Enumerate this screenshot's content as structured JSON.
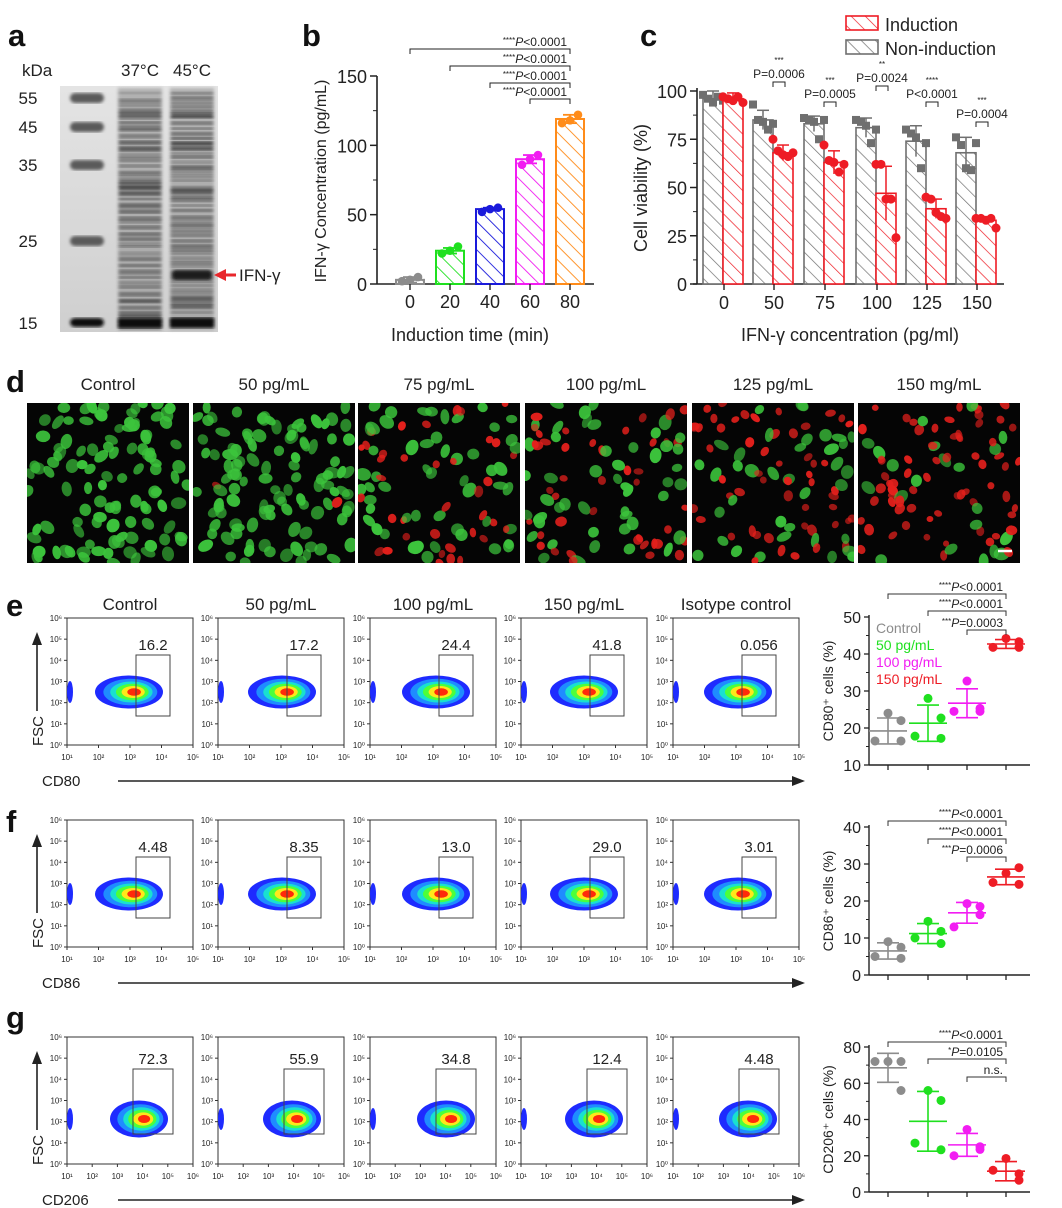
{
  "panel_labels": {
    "a": "a",
    "b": "b",
    "c": "c",
    "d": "d",
    "e": "e",
    "f": "f",
    "g": "g"
  },
  "panel_a": {
    "unit": "kDa",
    "markers": [
      "55",
      "45",
      "35",
      "25",
      "15"
    ],
    "lanes": [
      "37°C",
      "45°C"
    ],
    "arrow_label": "IFN-γ",
    "arrow_color": "#e8262b"
  },
  "chart_data": [
    {
      "id": "b",
      "type": "bar",
      "xlabel": "Induction time (min)",
      "ylabel": "IFN-γ Concentration (pg/mL)",
      "categories": [
        "0",
        "20",
        "40",
        "60",
        "80"
      ],
      "values": [
        3,
        24,
        54,
        90,
        119
      ],
      "errors": [
        2,
        2,
        1,
        3,
        3
      ],
      "points": [
        [
          2,
          3,
          5
        ],
        [
          22,
          24,
          27
        ],
        [
          52,
          54,
          55
        ],
        [
          86,
          90,
          93
        ],
        [
          116,
          118,
          122
        ]
      ],
      "colors": [
        "#8c8c8c",
        "#1fe01f",
        "#1a1adb",
        "#f21cf2",
        "#ff8c1a"
      ],
      "ylim": [
        0,
        150
      ],
      "yticks": [
        "0",
        "50",
        "100",
        "150"
      ],
      "grid": false,
      "comparisons": [
        {
          "from": "0",
          "to": "80",
          "stars": "****",
          "p": "P",
          "value": "<0.0001"
        },
        {
          "from": "20",
          "to": "80",
          "stars": "****",
          "p": "P",
          "value": "<0.0001"
        },
        {
          "from": "40",
          "to": "80",
          "stars": "****",
          "p": "P",
          "value": "<0.0001"
        },
        {
          "from": "60",
          "to": "80",
          "stars": "****",
          "p": "P",
          "value": "<0.0001"
        }
      ]
    },
    {
      "id": "c",
      "type": "bar",
      "xlabel": "IFN-γ concentration (pg/ml)",
      "ylabel": "Cell viability (%)",
      "categories": [
        "0",
        "50",
        "75",
        "100",
        "125",
        "150"
      ],
      "ylim": [
        0,
        100
      ],
      "yticks": [
        "0",
        "25",
        "50",
        "75",
        "100"
      ],
      "legend_position": "top-right",
      "series": [
        {
          "name": "Non-induction",
          "color": "#6f6f6f",
          "values": [
            96,
            85,
            83,
            81,
            74,
            68
          ],
          "errors": [
            4,
            5,
            4,
            5,
            8,
            8
          ],
          "points": [
            [
              98,
              96,
              94,
              97,
              95
            ],
            [
              93,
              85,
              84,
              80,
              83
            ],
            [
              86,
              85,
              84,
              75,
              85
            ],
            [
              85,
              84,
              82,
              73,
              80
            ],
            [
              80,
              78,
              76,
              60,
              73
            ],
            [
              76,
              72,
              60,
              59,
              73
            ]
          ]
        },
        {
          "name": "Induction",
          "color": "#ee1c25",
          "values": [
            96,
            68,
            63,
            47,
            39,
            33
          ],
          "errors": [
            3,
            4,
            6,
            14,
            5,
            1
          ],
          "points": [
            [
              97,
              96,
              95,
              97,
              94
            ],
            [
              75,
              69,
              67,
              66,
              68
            ],
            [
              72,
              64,
              63,
              58,
              62
            ],
            [
              62,
              62,
              44,
              44,
              24
            ],
            [
              45,
              44,
              37,
              35,
              34
            ],
            [
              34,
              34,
              33,
              34,
              29
            ]
          ]
        }
      ],
      "comparisons": [
        {
          "category": "50",
          "stars": "***",
          "label": "P=0.0006"
        },
        {
          "category": "75",
          "stars": "***",
          "label": "P=0.0005"
        },
        {
          "category": "100",
          "stars": "**",
          "label": "P=0.0024"
        },
        {
          "category": "125",
          "stars": "****",
          "label": "P<0.0001"
        },
        {
          "category": "150",
          "stars": "***",
          "label": "P=0.0004"
        }
      ]
    },
    {
      "id": "e",
      "type": "scatter",
      "ylabel": "CD80⁺ cells (%)",
      "ylim": [
        10,
        50
      ],
      "yticks": [
        "10",
        "20",
        "30",
        "40",
        "50"
      ],
      "legend_position": "top-left",
      "groups": [
        {
          "name": "Control",
          "color": "#8c8c8c",
          "mean": 19.2,
          "sd": 3.5,
          "points": [
            24,
            22,
            16.5,
            16.5
          ]
        },
        {
          "name": "50 pg/mL",
          "color": "#1fe01f",
          "mean": 21.3,
          "sd": 4.9,
          "points": [
            28,
            22.7,
            17.8,
            17.2
          ]
        },
        {
          "name": "100 pg/mL",
          "color": "#f21cf2",
          "mean": 26.7,
          "sd": 3.9,
          "points": [
            32.7,
            24.5,
            24.5,
            25.3
          ]
        },
        {
          "name": "150 pg/mL",
          "color": "#ee1c25",
          "mean": 42.7,
          "sd": 1.2,
          "points": [
            44.2,
            43.3,
            41.8,
            41.8
          ]
        }
      ],
      "comparisons": [
        {
          "from": "Control",
          "to": "150 pg/mL",
          "stars": "****",
          "p": "P",
          "value": "<0.0001"
        },
        {
          "from": "50 pg/mL",
          "to": "150 pg/mL",
          "stars": "****",
          "p": "P",
          "value": "<0.0001"
        },
        {
          "from": "100 pg/mL",
          "to": "150 pg/mL",
          "stars": "***",
          "p": "P",
          "value": "=0.0003"
        }
      ]
    },
    {
      "id": "f",
      "type": "scatter",
      "ylabel": "CD86⁺ cells (%)",
      "ylim": [
        0,
        40
      ],
      "yticks": [
        "0",
        "10",
        "20",
        "30",
        "40"
      ],
      "groups": [
        {
          "name": "Control",
          "color": "#8c8c8c",
          "mean": 6.5,
          "sd": 2.2,
          "points": [
            9,
            7.5,
            5,
            4.5
          ]
        },
        {
          "name": "50 pg/mL",
          "color": "#1fe01f",
          "mean": 11.2,
          "sd": 2.7,
          "points": [
            14.5,
            11.8,
            10,
            8.5
          ]
        },
        {
          "name": "100 pg/mL",
          "color": "#f21cf2",
          "mean": 16.8,
          "sd": 2.8,
          "points": [
            19.3,
            16.3,
            13,
            18.5
          ]
        },
        {
          "name": "150 pg/mL",
          "color": "#ee1c25",
          "mean": 26.5,
          "sd": 2.1,
          "points": [
            27.5,
            29,
            25,
            24.5
          ]
        }
      ],
      "comparisons": [
        {
          "from": "Control",
          "to": "150 pg/mL",
          "stars": "****",
          "p": "P",
          "value": "<0.0001"
        },
        {
          "from": "50 pg/mL",
          "to": "150 pg/mL",
          "stars": "****",
          "p": "P",
          "value": "<0.0001"
        },
        {
          "from": "100 pg/mL",
          "to": "150 pg/mL",
          "stars": "***",
          "p": "P",
          "value": "=0.0006"
        }
      ]
    },
    {
      "id": "g",
      "type": "scatter",
      "ylabel": "CD206⁺ cells (%)",
      "ylim": [
        0,
        80
      ],
      "yticks": [
        "0",
        "20",
        "40",
        "60",
        "80"
      ],
      "groups": [
        {
          "name": "Control",
          "color": "#8c8c8c",
          "mean": 68.5,
          "sd": 8,
          "points": [
            72,
            72,
            72,
            56
          ]
        },
        {
          "name": "50 pg/mL",
          "color": "#1fe01f",
          "mean": 39,
          "sd": 16.5,
          "points": [
            56,
            50.5,
            27,
            23.3
          ]
        },
        {
          "name": "100 pg/mL",
          "color": "#f21cf2",
          "mean": 26,
          "sd": 6.3,
          "points": [
            34.5,
            25,
            20,
            23.5
          ]
        },
        {
          "name": "150 pg/mL",
          "color": "#ee1c25",
          "mean": 11.5,
          "sd": 5.3,
          "points": [
            18.5,
            10,
            12,
            6.5
          ]
        }
      ],
      "comparisons": [
        {
          "from": "Control",
          "to": "150 pg/mL",
          "stars": "****",
          "p": "P",
          "value": "<0.0001"
        },
        {
          "from": "50 pg/mL",
          "to": "150 pg/mL",
          "stars": "*",
          "p": "P",
          "value": "=0.0105"
        },
        {
          "from": "100 pg/mL",
          "to": "150 pg/mL",
          "stars": "",
          "p": "",
          "value": "n.s."
        }
      ]
    }
  ],
  "panel_d": {
    "labels": [
      "Control",
      "50 pg/mL",
      "75 pg/mL",
      "100 pg/mL",
      "125 pg/mL",
      "150 mg/mL"
    ],
    "dead_fraction": [
      0,
      0.02,
      0.35,
      0.4,
      0.55,
      0.75
    ],
    "live_color": "#3cc43c",
    "dead_color": "#e4201c"
  },
  "flow": {
    "columns": [
      "Control",
      "50 pg/mL",
      "100 pg/mL",
      "150 pg/mL",
      "Isotype control"
    ],
    "y_axis": "FSC",
    "y_ticks": [
      "10⁰",
      "10¹",
      "10²",
      "10³",
      "10⁴",
      "10⁵",
      "10⁶"
    ],
    "rows": [
      {
        "marker": "CD80",
        "values": [
          "16.2",
          "17.2",
          "24.4",
          "41.8",
          "0.056"
        ],
        "x_ticks": [
          "10¹",
          "10²",
          "10³",
          "10⁴",
          "10⁵"
        ]
      },
      {
        "marker": "CD86",
        "values": [
          "4.48",
          "8.35",
          "13.0",
          "29.0",
          "3.01"
        ],
        "x_ticks": [
          "10¹",
          "10²",
          "10³",
          "10⁴",
          "10⁵"
        ]
      },
      {
        "marker": "CD206",
        "values": [
          "72.3",
          "55.9",
          "34.8",
          "12.4",
          "4.48"
        ],
        "x_ticks": [
          "10¹",
          "10²",
          "10³",
          "10⁴",
          "10⁵",
          "10⁶"
        ]
      }
    ]
  }
}
